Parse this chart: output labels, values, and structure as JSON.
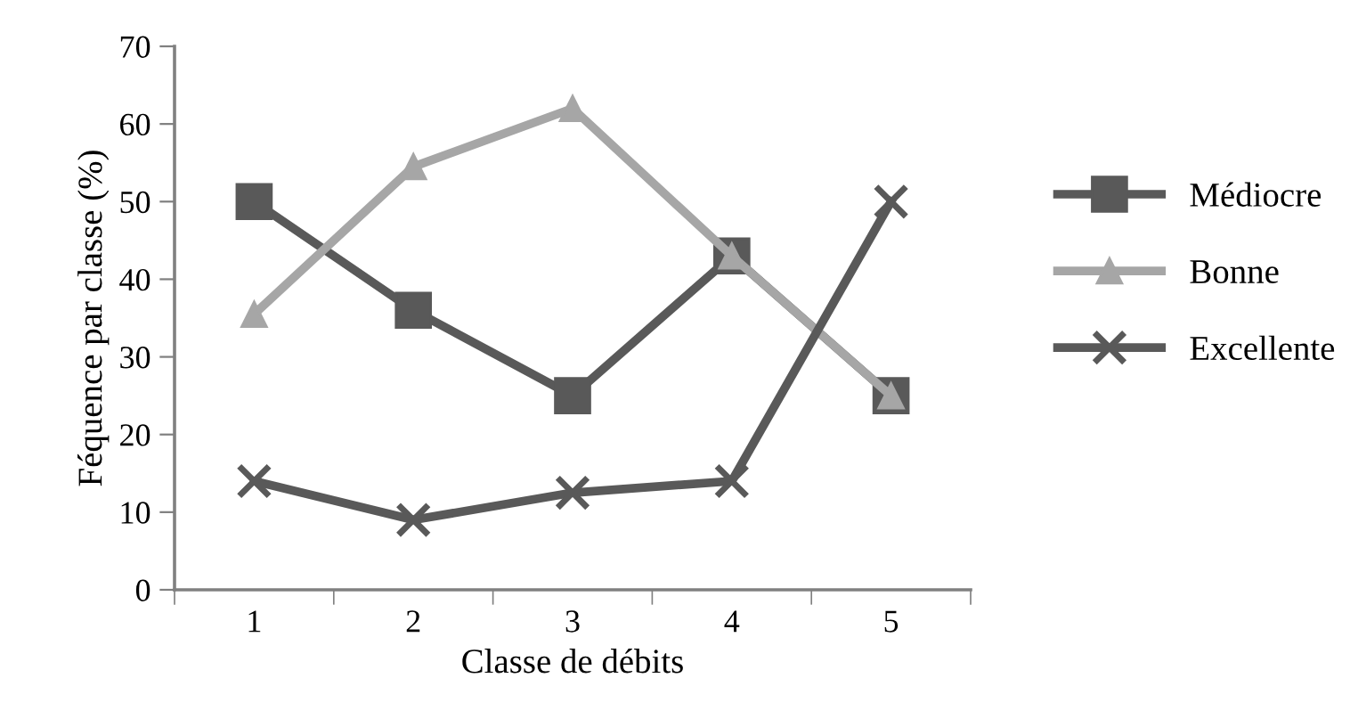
{
  "chart_data": {
    "type": "line",
    "xlabel": "Classe de débits",
    "ylabel": "Féquence par classe (%)",
    "categories": [
      "1",
      "2",
      "3",
      "4",
      "5"
    ],
    "ylim": [
      0,
      70
    ],
    "yticks": [
      0,
      10,
      20,
      30,
      40,
      50,
      60,
      70
    ],
    "grid": false,
    "legend": "right",
    "series": [
      {
        "name": "Médiocre",
        "color": "#595959",
        "marker": "square",
        "values": [
          50,
          36,
          25,
          43,
          25
        ]
      },
      {
        "name": "Bonne",
        "color": "#a6a6a6",
        "marker": "triangle",
        "values": [
          35.5,
          54.5,
          62,
          43,
          25
        ]
      },
      {
        "name": "Excellente",
        "color": "#595959",
        "marker": "cross",
        "values": [
          14,
          9,
          12.5,
          14,
          50
        ]
      }
    ]
  }
}
